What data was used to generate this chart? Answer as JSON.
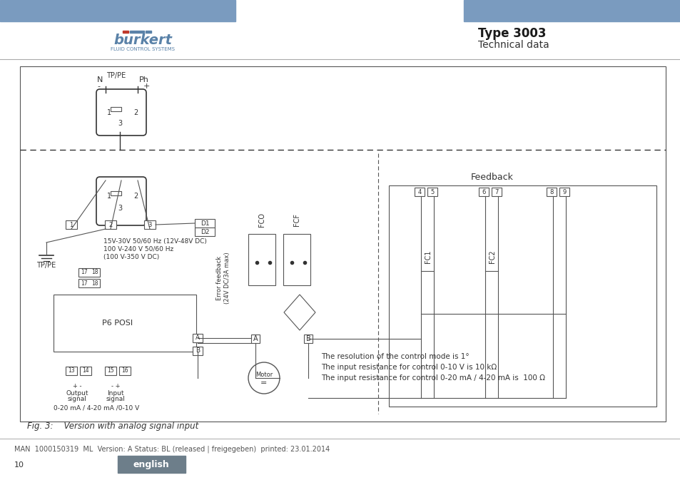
{
  "header_bar_color": "#7a9bbf",
  "burkert_text": "burkert",
  "burkert_subtitle": "FLUID CONTROL SYSTEMS",
  "type_text": "Type 3003",
  "technical_text": "Technical data",
  "footer_man_text": "MAN  1000150319  ML  Version: A Status: BL (released | freigegeben)  printed: 23.01.2014",
  "footer_page_text": "10",
  "footer_english_text": "english",
  "footer_english_bg": "#6d7e8a",
  "fig_caption": "Fig. 3:    Version with analog signal input",
  "background_color": "#ffffff",
  "line_color": "#333333"
}
